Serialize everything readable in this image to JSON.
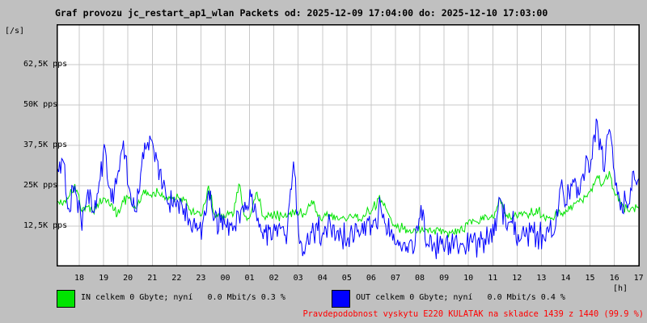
{
  "title": "Graf provozu jc_restart_ap1_wlan Packets od: 2025-12-09 17:04:00 do: 2025-12-10 17:03:00",
  "colors": {
    "background": "#c0c0c0",
    "plot_background": "#ffffff",
    "grid": "#c8c8c8",
    "frame": "#000000",
    "in_series": "#00e400",
    "out_series": "#0000ff",
    "footer_text": "#ff0000",
    "text": "#000000"
  },
  "y_axis": {
    "unit_label": "[/s]",
    "ticks": [
      {
        "label": "62,5K pps",
        "value_pps": 62500
      },
      {
        "label": "50K pps",
        "value_pps": 50000
      },
      {
        "label": "37,5K pps",
        "value_pps": 37500
      },
      {
        "label": "25K pps",
        "value_pps": 25000
      },
      {
        "label": "12,5K pps",
        "value_pps": 12500
      }
    ]
  },
  "x_axis": {
    "unit_label": "[h]",
    "hour_labels": [
      "18",
      "19",
      "20",
      "21",
      "22",
      "23",
      "00",
      "01",
      "02",
      "03",
      "04",
      "05",
      "06",
      "07",
      "08",
      "09",
      "10",
      "11",
      "12",
      "13",
      "14",
      "15",
      "16",
      "17"
    ]
  },
  "legend": {
    "in": {
      "label": "IN celkem 0 Gbyte; nyní   0.0 Mbit/s 0.3 %"
    },
    "out": {
      "label": "OUT celkem 0 Gbyte; nyní   0.0 Mbit/s 0.4 %"
    }
  },
  "footer": {
    "text": "Pravdepodobnost vyskytu E220 KULATAK na skladce 1439 z 1440 (99.9 %)"
  },
  "chart_data": {
    "type": "line",
    "title": "Graf provozu jc_restart_ap1_wlan Packets od: 2025-12-09 17:04:00 do: 2025-12-10 17:03:00",
    "xlabel": "[h]",
    "ylabel": "[/s] (pps)",
    "time_start": "17:04",
    "time_end": "17:03",
    "sample_step_minutes": 15,
    "ylim_pps": [
      0,
      75000
    ],
    "grid": true,
    "legend_position": "bottom",
    "series": [
      {
        "name": "IN",
        "color": "#00e400",
        "unit": "K pps",
        "observed_noise_kpps": 0.8,
        "values_kpps": [
          20.5,
          19,
          21.5,
          25.5,
          17.5,
          18.5,
          17,
          19.5,
          21,
          19.5,
          16,
          20,
          21.5,
          18,
          22,
          23,
          23,
          22,
          21.5,
          21,
          21.5,
          20.5,
          17.5,
          16.5,
          16.5,
          25,
          16,
          15.5,
          16,
          15.5,
          25.5,
          15.5,
          16.5,
          23,
          15.5,
          16,
          15.5,
          16,
          15.5,
          17,
          16.5,
          16,
          20.5,
          15.5,
          15.5,
          16,
          15.5,
          15,
          15,
          15.5,
          14.5,
          16.5,
          17.5,
          21,
          19.5,
          15,
          12,
          11.5,
          11,
          11.5,
          11,
          11.5,
          11,
          11,
          11,
          10.5,
          11.5,
          11,
          14.5,
          14,
          14.5,
          14.5,
          15,
          21,
          15.5,
          15,
          15.5,
          17,
          16,
          18,
          15.5,
          15,
          15.5,
          16,
          17,
          18.5,
          20,
          21.5,
          24,
          28,
          25.5,
          29.5,
          22,
          19,
          17.5,
          18,
          18.5
        ]
      },
      {
        "name": "OUT",
        "color": "#0000ff",
        "unit": "K pps",
        "observed_noise_kpps": 2.2,
        "values_kpps": [
          28,
          33,
          18,
          25,
          15,
          22,
          17,
          26,
          36.5,
          20,
          28,
          39,
          24,
          17,
          31,
          38.5,
          36,
          30,
          22,
          19,
          20,
          18,
          14,
          13.5,
          13,
          23.5,
          15,
          13.5,
          12,
          11,
          16,
          20,
          21.5,
          14,
          8.5,
          11.5,
          11,
          12,
          11.5,
          32.5,
          7,
          6.5,
          10.5,
          11,
          10,
          14,
          9,
          8.5,
          9,
          8.5,
          10,
          13,
          12,
          17.5,
          13.5,
          10.5,
          7,
          6.5,
          7,
          6.5,
          19,
          7,
          6.5,
          7,
          6.5,
          7,
          6,
          6.5,
          8.5,
          8,
          8.5,
          9,
          9.5,
          21,
          12,
          13.5,
          10,
          9.5,
          10.5,
          9.5,
          10,
          10.5,
          11,
          25,
          19,
          27,
          22,
          29.5,
          33,
          45,
          30,
          42.5,
          25,
          20,
          18,
          29.5,
          25
        ]
      }
    ]
  }
}
